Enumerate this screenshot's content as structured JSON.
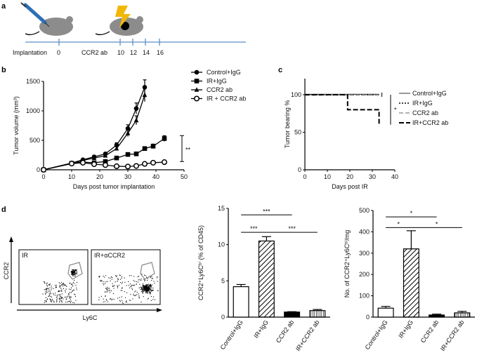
{
  "panels": {
    "a": "a",
    "b": "b",
    "c": "c",
    "d": "d"
  },
  "timeline": {
    "labels": [
      "Implantation",
      "CCR2 ab"
    ],
    "days": [
      "0",
      "10",
      "12",
      "14",
      "16"
    ]
  },
  "chart_data": [
    {
      "id": "b",
      "type": "line",
      "title": "",
      "xlabel": "Days post tumor implantation",
      "ylabel": "Tumor volume (mm³)",
      "xlim": [
        0,
        50
      ],
      "ylim": [
        0,
        1500
      ],
      "xticks": [
        "0",
        "10",
        "20",
        "30",
        "40",
        "50"
      ],
      "yticks": [
        "0",
        "500",
        "1000",
        "1500"
      ],
      "series": [
        {
          "name": "Control+IgG",
          "marker": "circle-filled",
          "x": [
            0,
            10,
            14,
            18,
            22,
            26,
            30,
            33,
            36
          ],
          "y": [
            0,
            115,
            170,
            220,
            270,
            420,
            700,
            1040,
            1400
          ]
        },
        {
          "name": "IR+IgG",
          "marker": "square",
          "x": [
            0,
            10,
            14,
            18,
            22,
            26,
            30,
            33,
            36,
            39,
            43
          ],
          "y": [
            0,
            110,
            130,
            120,
            140,
            200,
            260,
            270,
            360,
            400,
            530
          ]
        },
        {
          "name": "CCR2 ab",
          "marker": "triangle",
          "x": [
            0,
            10,
            14,
            18,
            22,
            26,
            30,
            33,
            36
          ],
          "y": [
            0,
            110,
            160,
            200,
            240,
            360,
            620,
            840,
            1270
          ]
        },
        {
          "name": "IR + CCR2 ab",
          "marker": "circle-open",
          "x": [
            0,
            10,
            14,
            18,
            22,
            26,
            30,
            33,
            36,
            39,
            43
          ],
          "y": [
            0,
            105,
            120,
            95,
            80,
            60,
            55,
            65,
            100,
            120,
            130
          ]
        }
      ],
      "annotations": [
        "**"
      ]
    },
    {
      "id": "c",
      "type": "line",
      "xlabel": "Days post IR",
      "ylabel": "Tumor bearing %",
      "xlim": [
        0,
        40
      ],
      "ylim": [
        0,
        100
      ],
      "xticks": [
        "0",
        "10",
        "20",
        "30",
        "40"
      ],
      "yticks": [
        "0",
        "50",
        "100"
      ],
      "series": [
        {
          "name": "Control+IgG",
          "x": [
            0,
            33
          ],
          "y": [
            100,
            100
          ]
        },
        {
          "name": "IR+IgG",
          "x": [
            0,
            33
          ],
          "y": [
            100,
            100
          ]
        },
        {
          "name": "CCR2 ab",
          "x": [
            0,
            33
          ],
          "y": [
            100,
            100
          ]
        },
        {
          "name": "IR+CCR2 ab",
          "x": [
            0,
            19,
            19,
            33,
            33
          ],
          "y": [
            100,
            100,
            80,
            80,
            60
          ]
        }
      ],
      "annotations": [
        "*"
      ]
    },
    {
      "id": "d1",
      "type": "bar",
      "ylabel": "CCR2⁺Ly6Cʰⁱ (% of CD45)",
      "categories": [
        "Control+IgG",
        "IR+IgG",
        "CCR2 ab",
        "IR+CCR2 ab"
      ],
      "values": [
        4.2,
        10.5,
        0.7,
        0.9
      ],
      "errors": [
        0.3,
        0.6,
        0.05,
        0.15
      ],
      "ylim": [
        0,
        15
      ],
      "yticks": [
        "0",
        "5",
        "10",
        "15"
      ],
      "significance": [
        "***",
        "***",
        "***"
      ]
    },
    {
      "id": "d2",
      "type": "bar",
      "ylabel": "No. of CCR2⁺Ly6Cʰⁱ/mg",
      "categories": [
        "Control+IgG",
        "IR+IgG",
        "CCR2 ab",
        "IR+CCR2 ab"
      ],
      "values": [
        42,
        320,
        10,
        20
      ],
      "errors": [
        8,
        85,
        4,
        7
      ],
      "ylim": [
        0,
        500
      ],
      "yticks": [
        "0",
        "100",
        "200",
        "300",
        "400",
        "500"
      ],
      "significance": [
        "*",
        "*",
        "*"
      ]
    }
  ],
  "flow": {
    "ylabel": "CCR2",
    "xlabel": "Ly6C",
    "plots": [
      {
        "title": "IR"
      },
      {
        "title": "IR+αCCR2"
      }
    ]
  }
}
